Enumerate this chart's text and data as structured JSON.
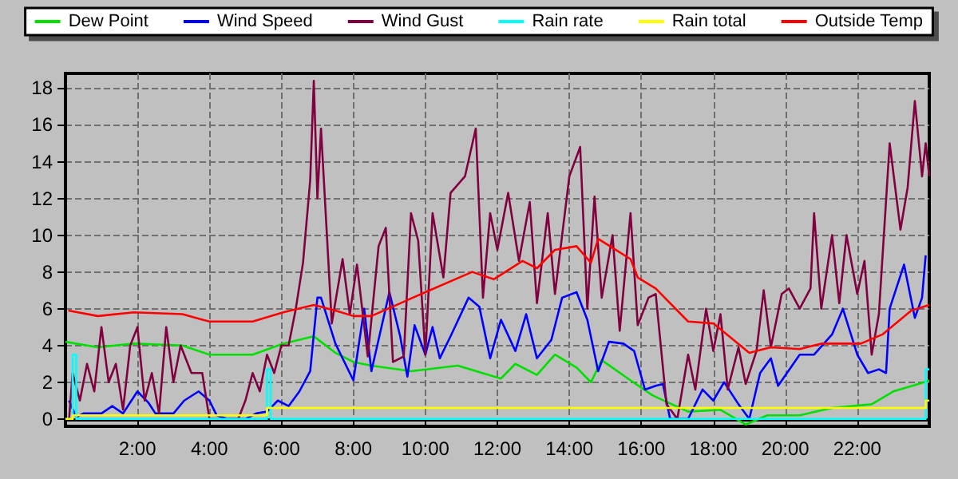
{
  "chart_data": {
    "type": "line",
    "legend": "top",
    "grid": true,
    "line_style": "solid",
    "marker": "none",
    "xlim": [
      0,
      24
    ],
    "xticks": [
      {
        "value": 2,
        "label": "2:00"
      },
      {
        "value": 4,
        "label": "4:00"
      },
      {
        "value": 6,
        "label": "6:00"
      },
      {
        "value": 8,
        "label": "8:00"
      },
      {
        "value": 10,
        "label": "10:00"
      },
      {
        "value": 12,
        "label": "12:00"
      },
      {
        "value": 14,
        "label": "14:00"
      },
      {
        "value": 16,
        "label": "16:00"
      },
      {
        "value": 18,
        "label": "18:00"
      },
      {
        "value": 20,
        "label": "20:00"
      },
      {
        "value": 22,
        "label": "22:00"
      }
    ],
    "ylim": [
      -0.4,
      18.8
    ],
    "yticks": [
      0,
      2,
      4,
      6,
      8,
      10,
      12,
      14,
      16,
      18
    ],
    "series": [
      {
        "name": "Dew Point",
        "color": "#00e000",
        "x": [
          0,
          0.9,
          1.9,
          3.25,
          4.0,
          5.2,
          6.05,
          6.9,
          7.1,
          7.5,
          8.0,
          8.5,
          9.6,
          10.9,
          12.1,
          12.5,
          13.1,
          13.6,
          14.2,
          14.6,
          14.9,
          15.7,
          16.3,
          16.4,
          17.3,
          18.2,
          18.9,
          19.5,
          20.4,
          21.3,
          22.4,
          23.0,
          23.7,
          24
        ],
        "values": [
          4.2,
          3.9,
          4.1,
          4.0,
          3.5,
          3.5,
          4.1,
          4.5,
          4.2,
          3.6,
          3.1,
          2.9,
          2.6,
          2.9,
          2.2,
          3.0,
          2.4,
          3.5,
          2.8,
          2.0,
          3.2,
          2.1,
          1.3,
          1.2,
          0.4,
          0.5,
          -0.3,
          0.2,
          0.2,
          0.6,
          0.8,
          1.5,
          1.9,
          2.1
        ]
      },
      {
        "name": "Wind Speed",
        "color": "#0000ff",
        "x": [
          0.1,
          0.3,
          0.5,
          1,
          1.3,
          1.6,
          2.0,
          2.3,
          2.5,
          3,
          3.3,
          3.7,
          4,
          4.2,
          4.5,
          5.0,
          5.3,
          5.6,
          5.9,
          6.2,
          6.5,
          6.8,
          7.0,
          7.1,
          7.5,
          8.0,
          8.3,
          8.5,
          9.0,
          9.3,
          9.5,
          9.7,
          10.0,
          10.2,
          10.4,
          10.7,
          11.2,
          11.5,
          11.8,
          12.1,
          12.5,
          12.8,
          13.1,
          13.5,
          13.8,
          14.2,
          14.5,
          14.8,
          15.1,
          15.5,
          15.8,
          16.1,
          16.4,
          16.6,
          16.8,
          17.3,
          17.7,
          18.0,
          18.3,
          18.7,
          19.0,
          19.3,
          19.6,
          19.8,
          20.4,
          20.8,
          21.3,
          21.6,
          22.0,
          22.3,
          22.6,
          22.8,
          22.9,
          23.3,
          23.6,
          23.8,
          23.9
        ],
        "values": [
          1.0,
          0.1,
          0.3,
          0.3,
          0.7,
          0.3,
          1.5,
          0.9,
          0.3,
          0.3,
          1.0,
          1.5,
          1.0,
          0.2,
          0,
          0,
          0.3,
          0.4,
          1.0,
          0.7,
          1.5,
          2.6,
          6.6,
          6.6,
          4.1,
          2.1,
          6.0,
          2.6,
          6.9,
          4.5,
          2.3,
          5.1,
          3.5,
          5.0,
          3.3,
          4.5,
          6.6,
          6.1,
          3.3,
          5.4,
          3.7,
          5.7,
          3.3,
          4.3,
          6.6,
          6.9,
          5.4,
          2.6,
          4.2,
          4.1,
          3.7,
          1.6,
          1.8,
          1.9,
          0,
          0,
          1.6,
          1.0,
          2.0,
          0.8,
          0,
          2.5,
          3.3,
          1.8,
          3.5,
          3.5,
          4.6,
          6.0,
          3.5,
          2.5,
          2.7,
          2.5,
          6.0,
          8.4,
          5.5,
          6.6,
          8.9
        ]
      },
      {
        "name": "Wind Gust",
        "color": "#800040",
        "x": [
          0.1,
          0.2,
          0.4,
          0.6,
          0.8,
          1.0,
          1.2,
          1.4,
          1.6,
          1.8,
          2.0,
          2.2,
          2.4,
          2.6,
          2.8,
          3.0,
          3.2,
          3.5,
          3.8,
          4.0,
          4.5,
          4.8,
          5.0,
          5.2,
          5.4,
          5.6,
          5.8,
          6.0,
          6.2,
          6.4,
          6.6,
          6.8,
          6.9,
          7.0,
          7.1,
          7.4,
          7.7,
          7.9,
          8.1,
          8.4,
          8.7,
          8.9,
          9.1,
          9.4,
          9.6,
          9.8,
          10.0,
          10.2,
          10.5,
          10.7,
          11.1,
          11.4,
          11.6,
          11.8,
          12.0,
          12.3,
          12.6,
          12.9,
          13.1,
          13.4,
          13.6,
          14.0,
          14.3,
          14.5,
          14.7,
          14.9,
          15.2,
          15.4,
          15.7,
          15.9,
          16.2,
          16.4,
          16.7,
          17.0,
          17.3,
          17.5,
          17.8,
          18.0,
          18.2,
          18.4,
          18.7,
          18.9,
          19.2,
          19.4,
          19.6,
          19.9,
          20.1,
          20.4,
          20.7,
          20.8,
          21.0,
          21.3,
          21.5,
          21.7,
          22.0,
          22.2,
          22.4,
          22.6,
          22.9,
          23.2,
          23.4,
          23.6,
          23.8,
          23.9,
          24.0
        ],
        "values": [
          0,
          2.5,
          1.0,
          3.0,
          1.5,
          5.0,
          2.0,
          3.0,
          0.5,
          4.0,
          5.0,
          1.0,
          2.5,
          0.3,
          5.0,
          2.0,
          4.0,
          2.5,
          2.5,
          0,
          0,
          0,
          1.0,
          2.5,
          1.5,
          3.5,
          2.5,
          4.0,
          4.0,
          6.0,
          8.5,
          13.0,
          18.4,
          12.0,
          15.8,
          5.2,
          8.7,
          5.7,
          8.4,
          3.4,
          9.4,
          10.4,
          3.1,
          3.4,
          11.2,
          9.7,
          3.5,
          11.2,
          7.7,
          12.3,
          13.2,
          15.8,
          6.6,
          11.2,
          9.2,
          12.3,
          8.6,
          11.8,
          6.3,
          11.2,
          6.8,
          13.2,
          14.8,
          6.0,
          12.1,
          6.6,
          10.0,
          4.8,
          11.2,
          5.1,
          6.6,
          6.8,
          0.8,
          0,
          3.5,
          1.6,
          6.0,
          3.7,
          5.7,
          1.6,
          3.9,
          1.9,
          3.7,
          7.0,
          3.9,
          6.8,
          7.1,
          6.0,
          7.1,
          11.2,
          6.0,
          10.0,
          6.3,
          10.0,
          6.8,
          8.6,
          3.5,
          5.7,
          15.0,
          10.3,
          12.6,
          17.3,
          13.2,
          15.0,
          13.2
        ]
      },
      {
        "name": "Rain rate",
        "color": "#00ffff",
        "type": "step",
        "x": [
          0,
          0.15,
          0.2,
          0.3,
          5.5,
          5.6,
          5.7,
          23.85,
          23.9,
          24
        ],
        "values": [
          0,
          0,
          3.5,
          0,
          0,
          2.7,
          0,
          0,
          2.7,
          2.7
        ]
      },
      {
        "name": "Rain total",
        "color": "#ffff00",
        "type": "step",
        "x": [
          0,
          0.2,
          5.6,
          23.9,
          24
        ],
        "values": [
          0,
          0.2,
          0.6,
          1.0,
          1.0
        ]
      },
      {
        "name": "Outside Temp",
        "color": "#ff0000",
        "x": [
          0.08,
          0.9,
          1.9,
          3.25,
          4.0,
          5.2,
          6.05,
          6.9,
          7.5,
          8.0,
          8.5,
          10.0,
          11.3,
          11.9,
          12.7,
          13.1,
          13.6,
          14.2,
          14.6,
          14.8,
          15.7,
          15.9,
          16.4,
          17.3,
          18.0,
          19.0,
          19.6,
          20.4,
          21.0,
          22.1,
          22.7,
          23.5,
          24
        ],
        "values": [
          5.9,
          5.6,
          5.8,
          5.7,
          5.3,
          5.3,
          5.8,
          6.2,
          5.9,
          5.6,
          5.6,
          6.9,
          8.0,
          7.6,
          8.6,
          8.2,
          9.2,
          9.4,
          8.5,
          9.8,
          8.7,
          7.7,
          7.1,
          5.3,
          5.2,
          3.6,
          3.9,
          3.8,
          4.1,
          4.1,
          4.6,
          5.9,
          6.2
        ]
      }
    ]
  }
}
